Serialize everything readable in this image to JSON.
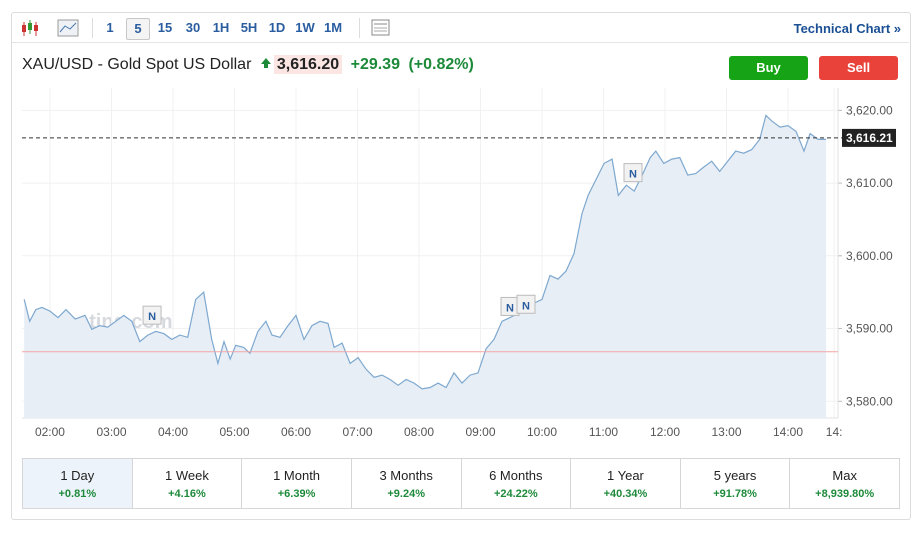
{
  "toolbar": {
    "intervals": [
      "1",
      "5",
      "15",
      "30",
      "1H",
      "5H",
      "1D",
      "1W",
      "1M"
    ],
    "link": "Technical Chart »"
  },
  "header": {
    "instrument": "XAU/USD - Gold Spot US Dollar",
    "price": "3,616.20",
    "change": "+29.39",
    "change_pct": "(+0.82%)"
  },
  "buttons": {
    "buy": "Buy",
    "sell": "Sell"
  },
  "chart_data": {
    "type": "line",
    "color": "#7ea8cf",
    "fill": "#e7eef6",
    "watermark": "Investing.com",
    "x": [
      1.58,
      1.67,
      1.77,
      1.87,
      2.0,
      2.13,
      2.26,
      2.41,
      2.57,
      2.68,
      2.81,
      2.94,
      3.07,
      3.2,
      3.33,
      3.46,
      3.59,
      3.72,
      3.85,
      3.98,
      4.11,
      4.24,
      4.37,
      4.5,
      4.63,
      4.73,
      4.83,
      4.93,
      5.02,
      5.15,
      5.25,
      5.38,
      5.51,
      5.61,
      5.74,
      5.87,
      6.0,
      6.13,
      6.26,
      6.39,
      6.52,
      6.62,
      6.75,
      6.88,
      7.01,
      7.14,
      7.27,
      7.4,
      7.53,
      7.66,
      7.79,
      7.92,
      8.05,
      8.18,
      8.31,
      8.44,
      8.57,
      8.7,
      8.83,
      8.96,
      9.09,
      9.22,
      9.35,
      9.48,
      9.61,
      9.74,
      9.87,
      10.0,
      10.13,
      10.26,
      10.39,
      10.52,
      10.65,
      10.75,
      10.88,
      11.01,
      11.14,
      11.24,
      11.37,
      11.5,
      11.63,
      11.76,
      11.85,
      11.98,
      12.11,
      12.24,
      12.37,
      12.5,
      12.63,
      12.76,
      12.89,
      13.02,
      13.15,
      13.28,
      13.41,
      13.54,
      13.64,
      13.74,
      13.87,
      14.0,
      14.13,
      14.26,
      14.36,
      14.49,
      14.62
    ],
    "values": [
      3594.0,
      3591.0,
      3592.6,
      3592.9,
      3592.4,
      3591.5,
      3592.6,
      3591.3,
      3591.8,
      3589.9,
      3590.4,
      3590.2,
      3591.0,
      3591.8,
      3591.0,
      3588.2,
      3589.1,
      3589.6,
      3589.3,
      3588.5,
      3589.1,
      3588.8,
      3594.0,
      3595.0,
      3588.5,
      3585.2,
      3588.2,
      3585.8,
      3587.7,
      3587.4,
      3586.6,
      3589.6,
      3591.0,
      3589.1,
      3588.8,
      3590.4,
      3591.8,
      3588.5,
      3590.4,
      3591.0,
      3590.7,
      3587.4,
      3588.0,
      3585.2,
      3586.0,
      3584.4,
      3583.3,
      3583.6,
      3583.0,
      3582.2,
      3583.0,
      3582.5,
      3581.7,
      3581.9,
      3582.5,
      3581.9,
      3583.9,
      3582.5,
      3583.6,
      3583.9,
      3587.2,
      3588.5,
      3591.0,
      3591.5,
      3592.1,
      3592.4,
      3593.5,
      3594.0,
      3597.3,
      3596.8,
      3597.9,
      3600.3,
      3605.8,
      3608.3,
      3610.5,
      3612.7,
      3613.3,
      3608.3,
      3609.7,
      3608.9,
      3611.1,
      3613.5,
      3614.4,
      3612.7,
      3613.3,
      3613.5,
      3611.1,
      3611.3,
      3612.2,
      3613.0,
      3611.6,
      3613.0,
      3614.4,
      3614.1,
      3614.6,
      3616.0,
      3619.3,
      3618.5,
      3617.7,
      3617.9,
      3617.1,
      3614.4,
      3616.8,
      3616.0,
      3616.0
    ],
    "xlim": [
      1.545,
      14.813
    ],
    "ylim": [
      3577.7,
      3623.07
    ],
    "xticks": [
      {
        "value": 2,
        "label": "02:00"
      },
      {
        "value": 3,
        "label": "03:00"
      },
      {
        "value": 4,
        "label": "04:00"
      },
      {
        "value": 5,
        "label": "05:00"
      },
      {
        "value": 6,
        "label": "06:00"
      },
      {
        "value": 7,
        "label": "07:00"
      },
      {
        "value": 8,
        "label": "08:00"
      },
      {
        "value": 9,
        "label": "09:00"
      },
      {
        "value": 10,
        "label": "10:00"
      },
      {
        "value": 11,
        "label": "11:00"
      },
      {
        "value": 12,
        "label": "12:00"
      },
      {
        "value": 13,
        "label": "13:00"
      },
      {
        "value": 14,
        "label": "14:00"
      },
      {
        "value": 14.75,
        "label": "14:"
      }
    ],
    "yticks": [
      {
        "value": 3580,
        "label": "3,580.00"
      },
      {
        "value": 3590,
        "label": "3,590.00"
      },
      {
        "value": 3600,
        "label": "3,600.00"
      },
      {
        "value": 3610,
        "label": "3,610.00"
      },
      {
        "value": 3620,
        "label": "3,620.00"
      }
    ],
    "grid": true,
    "price_line": {
      "value": 3616.21,
      "label": "3,616.21"
    },
    "prev_close_line": 3586.8,
    "annotations": [
      {
        "x": 3.66,
        "y": 3591.7,
        "label": "N"
      },
      {
        "x": 9.48,
        "y": 3592.9,
        "label": "N"
      },
      {
        "x": 9.74,
        "y": 3593.2,
        "label": "N"
      },
      {
        "x": 11.48,
        "y": 3611.3,
        "label": "N"
      }
    ]
  },
  "periods": [
    {
      "label": "1 Day",
      "change": "+0.81%"
    },
    {
      "label": "1 Week",
      "change": "+4.16%"
    },
    {
      "label": "1 Month",
      "change": "+6.39%"
    },
    {
      "label": "3 Months",
      "change": "+9.24%"
    },
    {
      "label": "6 Months",
      "change": "+24.22%"
    },
    {
      "label": "1 Year",
      "change": "+40.34%"
    },
    {
      "label": "5 years",
      "change": "+91.78%"
    },
    {
      "label": "Max",
      "change": "+8,939.80%"
    }
  ]
}
